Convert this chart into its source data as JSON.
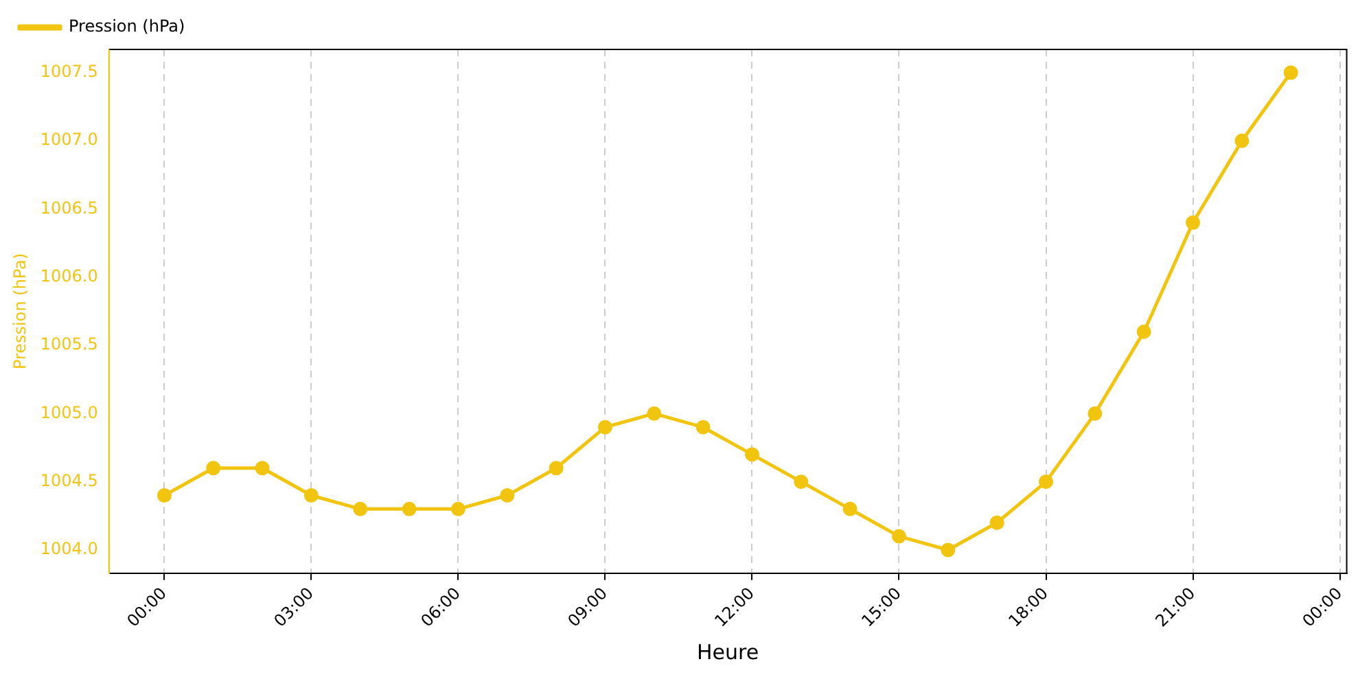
{
  "chart_data": {
    "type": "line",
    "xlabel": "Heure",
    "ylabel": "Pression (hPa)",
    "x": [
      0,
      1,
      2,
      3,
      4,
      5,
      6,
      7,
      8,
      9,
      10,
      11,
      12,
      13,
      14,
      15,
      16,
      17,
      18,
      19,
      20,
      21,
      22,
      23
    ],
    "series": [
      {
        "name": "Pression (hPa)",
        "color": "#f1c40f",
        "values": [
          1004.4,
          1004.6,
          1004.6,
          1004.4,
          1004.3,
          1004.3,
          1004.3,
          1004.4,
          1004.6,
          1004.9,
          1005.0,
          1004.9,
          1004.7,
          1004.5,
          1004.3,
          1004.1,
          1004.0,
          1004.2,
          1004.5,
          1005.0,
          1005.6,
          1006.4,
          1007.0,
          1007.5
        ]
      }
    ],
    "xlim": [
      -1.13,
      24.14
    ],
    "ylim": [
      1003.83,
      1007.67
    ],
    "xticks": [
      {
        "value": 0,
        "label": "00:00"
      },
      {
        "value": 3,
        "label": "03:00"
      },
      {
        "value": 6,
        "label": "06:00"
      },
      {
        "value": 9,
        "label": "09:00"
      },
      {
        "value": 12,
        "label": "12:00"
      },
      {
        "value": 15,
        "label": "15:00"
      },
      {
        "value": 18,
        "label": "18:00"
      },
      {
        "value": 21,
        "label": "21:00"
      },
      {
        "value": 24,
        "label": "00:00"
      }
    ],
    "yticks": [
      {
        "value": 1004,
        "label": "1004.0"
      },
      1004.5,
      {
        "value": 1005,
        "label": "1005.0"
      },
      1005.5,
      {
        "value": 1006,
        "label": "1006.0"
      },
      1006.5,
      {
        "value": 1007,
        "label": "1007.0"
      },
      1007.5
    ],
    "grid": "x",
    "legend": "top left",
    "marker": "circle",
    "line_style": "solid"
  }
}
